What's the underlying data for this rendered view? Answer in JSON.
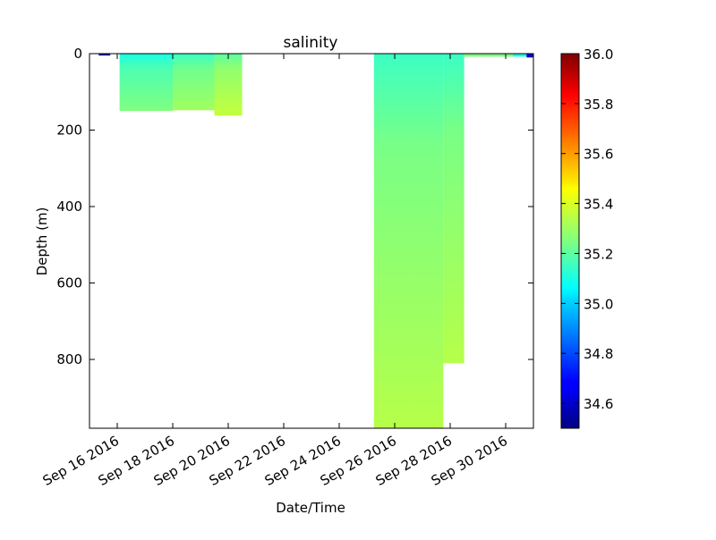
{
  "chart_data": {
    "type": "scatter",
    "title": "salinity",
    "xlabel": "Date/Time",
    "ylabel": "Depth (m)",
    "x_type": "date",
    "xlim": [
      "2016-09-15",
      "2016-10-01"
    ],
    "ylim": [
      0,
      980
    ],
    "y_inverted": true,
    "x_ticks": [
      "2016-09-16",
      "2016-09-18",
      "2016-09-20",
      "2016-09-22",
      "2016-09-24",
      "2016-09-26",
      "2016-09-28",
      "2016-09-30"
    ],
    "x_tick_labels": [
      "Sep 16 2016",
      "Sep 18 2016",
      "Sep 20 2016",
      "Sep 22 2016",
      "Sep 24 2016",
      "Sep 26 2016",
      "Sep 28 2016",
      "Sep 30 2016"
    ],
    "y_ticks": [
      0,
      200,
      400,
      600,
      800
    ],
    "y_tick_labels": [
      "0",
      "200",
      "400",
      "600",
      "800"
    ],
    "colorbar": {
      "colormap": "jet",
      "min": 34.5,
      "max": 36.0,
      "ticks": [
        34.6,
        34.8,
        35.0,
        35.2,
        35.4,
        35.6,
        35.8,
        36.0
      ],
      "tick_labels": [
        "34.6",
        "34.8",
        "35.0",
        "35.2",
        "35.4",
        "35.6",
        "35.8",
        "36.0"
      ]
    },
    "segments": [
      {
        "start": "2016-09-15T08:00",
        "end": "2016-09-15T18:00",
        "max_depth": 5,
        "surface_salinity": 34.55,
        "deep_salinity": 34.55
      },
      {
        "start": "2016-09-16T02:00",
        "end": "2016-09-18T00:00",
        "max_depth": 150,
        "surface_salinity": 35.1,
        "deep_salinity": 35.25
      },
      {
        "start": "2016-09-18T00:00",
        "end": "2016-09-19T12:00",
        "max_depth": 148,
        "surface_salinity": 35.15,
        "deep_salinity": 35.3
      },
      {
        "start": "2016-09-19T12:00",
        "end": "2016-09-20T12:00",
        "max_depth": 162,
        "surface_salinity": 35.2,
        "deep_salinity": 35.35
      },
      {
        "start": "2016-09-25T06:00",
        "end": "2016-09-27T18:00",
        "max_depth": 980,
        "surface_salinity": 35.15,
        "deep_salinity": 35.33
      },
      {
        "start": "2016-09-27T18:00",
        "end": "2016-09-28T12:00",
        "max_depth": 810,
        "surface_salinity": 35.15,
        "deep_salinity": 35.33
      },
      {
        "start": "2016-09-28T12:00",
        "end": "2016-09-30T06:00",
        "max_depth": 8,
        "surface_salinity": 35.25,
        "deep_salinity": 35.25
      },
      {
        "start": "2016-09-30T06:00",
        "end": "2016-09-30T18:00",
        "max_depth": 8,
        "surface_salinity": 35.1,
        "deep_salinity": 35.1
      },
      {
        "start": "2016-09-30T18:00",
        "end": "2016-10-01T00:00",
        "max_depth": 10,
        "surface_salinity": 34.6,
        "deep_salinity": 34.6
      }
    ],
    "grid": false,
    "legend": "none"
  }
}
